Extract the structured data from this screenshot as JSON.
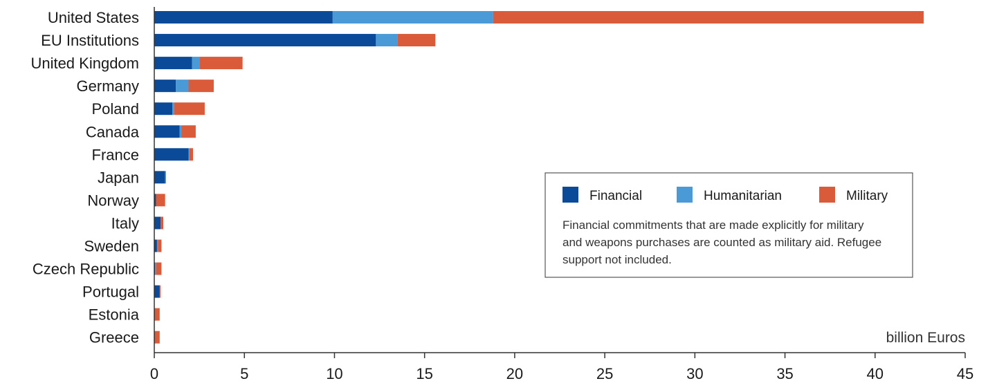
{
  "chart_data": {
    "type": "bar",
    "orientation": "horizontal",
    "stacked": true,
    "categories": [
      "United States",
      "EU Institutions",
      "United Kingdom",
      "Germany",
      "Poland",
      "Canada",
      "France",
      "Japan",
      "Norway",
      "Italy",
      "Sweden",
      "Czech Republic",
      "Portugal",
      "Estonia",
      "Greece"
    ],
    "series": [
      {
        "name": "Financial",
        "color": "#0b4a99",
        "values": [
          9.9,
          12.3,
          2.1,
          1.2,
          1.0,
          1.4,
          1.9,
          0.6,
          0.1,
          0.35,
          0.15,
          0.05,
          0.3,
          0.0,
          0.0
        ]
      },
      {
        "name": "Humanitarian",
        "color": "#4a9ad8",
        "values": [
          8.9,
          1.2,
          0.4,
          0.7,
          0.1,
          0.1,
          0.05,
          0.05,
          0.0,
          0.0,
          0.05,
          0.05,
          0.0,
          0.0,
          0.0
        ]
      },
      {
        "name": "Military",
        "color": "#d95b3a",
        "values": [
          23.9,
          2.1,
          2.4,
          1.4,
          1.7,
          0.8,
          0.2,
          0.0,
          0.5,
          0.15,
          0.2,
          0.3,
          0.05,
          0.3,
          0.3
        ]
      }
    ],
    "xlim": [
      0,
      45
    ],
    "xticks": [
      0,
      5,
      10,
      15,
      20,
      25,
      30,
      35,
      40,
      45
    ],
    "xlabel": "billion Euros",
    "legend": {
      "placement": "center-right",
      "note": [
        "Financial commitments that are made explicitly for military",
        "and weapons purchases are counted as military aid. Refugee",
        "support not included."
      ]
    },
    "grid": false
  }
}
